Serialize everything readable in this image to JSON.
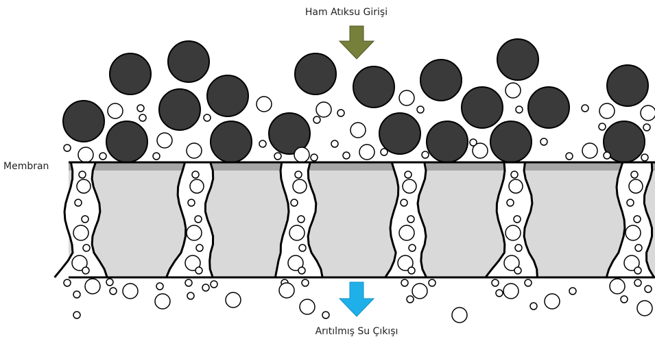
{
  "labels": {
    "inlet": "Ham Atıksu Girişi",
    "membrane": "Membran",
    "outlet": "Arıtılmış Su Çıkışı"
  }
}
